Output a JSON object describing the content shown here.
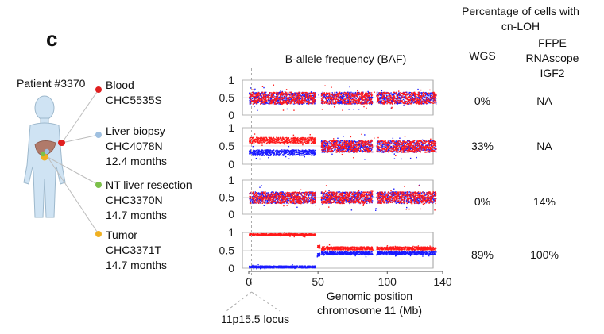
{
  "panel_label": "c",
  "patient": "Patient #3370",
  "samples": [
    {
      "name": "Blood",
      "id": "CHC5535S",
      "time": "",
      "dot_color": "#e02020"
    },
    {
      "name": "Liver biopsy",
      "id": "CHC4078N",
      "time": "12.4 months",
      "dot_color": "#9fc0e0"
    },
    {
      "name": "NT liver resection",
      "id": "CHC3370N",
      "time": "14.7 months",
      "dot_color": "#7cc04a"
    },
    {
      "name": "Tumor",
      "id": "CHC3371T",
      "time": "14.7 months",
      "dot_color": "#f0b020"
    }
  ],
  "column_headers": {
    "group": "Percentage of cells with cn-LOH",
    "group_line1": "Percentage of cells with",
    "group_line2": "cn-LOH",
    "wgs": "WGS",
    "ffpe_line1": "FFPE",
    "ffpe_line2": "RNAscope",
    "ffpe_line3": "IGF2"
  },
  "annotation": "11p15.5 locus",
  "colors": {
    "allele_a": "#ff1a1a",
    "allele_b": "#1a1aff",
    "axis": "#888888",
    "grid": "#cfcfcf"
  },
  "chart_data": {
    "type": "scatter",
    "title": "B-allele frequency (BAF)",
    "xlabel": "Genomic position chromosome 11 (Mb)",
    "xlabel_line1": "Genomic position",
    "xlabel_line2": "chromosome 11 (Mb)",
    "xlim": [
      0,
      140
    ],
    "xticks": [
      0,
      50,
      100,
      140
    ],
    "xtick_labels": [
      "0",
      "50",
      "100",
      "140"
    ],
    "ylim": [
      0,
      1
    ],
    "yticks": [
      0,
      0.5,
      1
    ],
    "ytick_labels": [
      "0",
      "0.5",
      "1"
    ],
    "data_gaps_mb": [
      [
        48,
        52
      ],
      [
        89,
        92
      ]
    ],
    "data_end_mb": 135,
    "locus_mb": 2,
    "series": [
      {
        "name": "Blood CHC5535S",
        "wgs_pct": "0%",
        "ffpe_pct": "NA",
        "segments": [
          {
            "from": 0,
            "to": 135,
            "baf_a": 0.5,
            "baf_b": 0.5,
            "spread": 0.17
          }
        ]
      },
      {
        "name": "Liver biopsy CHC4078N",
        "wgs_pct": "33%",
        "ffpe_pct": "NA",
        "segments": [
          {
            "from": 0,
            "to": 48,
            "baf_a": 0.67,
            "baf_b": 0.33,
            "spread": 0.08
          },
          {
            "from": 52,
            "to": 135,
            "baf_a": 0.5,
            "baf_b": 0.5,
            "spread": 0.16
          }
        ]
      },
      {
        "name": "NT liver resection CHC3370N",
        "wgs_pct": "0%",
        "ffpe_pct": "14%",
        "segments": [
          {
            "from": 0,
            "to": 135,
            "baf_a": 0.5,
            "baf_b": 0.5,
            "spread": 0.17
          }
        ]
      },
      {
        "name": "Tumor CHC3371T",
        "wgs_pct": "89%",
        "ffpe_pct": "100%",
        "segments": [
          {
            "from": 0,
            "to": 48,
            "baf_a": 0.95,
            "baf_b": 0.05,
            "spread": 0.03
          },
          {
            "from": 49,
            "to": 51,
            "baf_a": 0.62,
            "baf_b": 0.38,
            "spread": 0.05
          },
          {
            "from": 52,
            "to": 135,
            "baf_a": 0.57,
            "baf_b": 0.43,
            "spread": 0.045
          }
        ]
      }
    ]
  }
}
